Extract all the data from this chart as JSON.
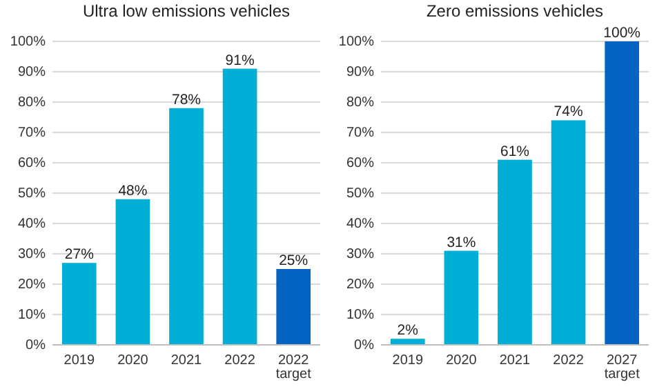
{
  "chart_data": [
    {
      "type": "bar",
      "title": "Ultra low emissions vehicles",
      "categories": [
        "2019",
        "2020",
        "2021",
        "2022",
        "2022\ntarget"
      ],
      "values": [
        27,
        48,
        78,
        91,
        25
      ],
      "colors": [
        "#00aed6",
        "#00aed6",
        "#00aed6",
        "#00aed6",
        "#0563c1"
      ],
      "value_labels": [
        "27%",
        "48%",
        "78%",
        "91%",
        "25%"
      ],
      "ylim": [
        0,
        100
      ],
      "yticks": [
        {
          "value": 0,
          "label": "0%"
        },
        {
          "value": 10,
          "label": "10%"
        },
        {
          "value": 20,
          "label": "20%"
        },
        {
          "value": 30,
          "label": "30%"
        },
        {
          "value": 40,
          "label": "40%"
        },
        {
          "value": 50,
          "label": "50%"
        },
        {
          "value": 60,
          "label": "60%"
        },
        {
          "value": 70,
          "label": "70%"
        },
        {
          "value": 80,
          "label": "80%"
        },
        {
          "value": 90,
          "label": "90%"
        },
        {
          "value": 100,
          "label": "100%"
        }
      ],
      "grid": "y"
    },
    {
      "type": "bar",
      "title": "Zero emissions vehicles",
      "categories": [
        "2019",
        "2020",
        "2021",
        "2022",
        "2027\ntarget"
      ],
      "values": [
        2,
        31,
        61,
        74,
        100
      ],
      "colors": [
        "#00aed6",
        "#00aed6",
        "#00aed6",
        "#00aed6",
        "#0563c1"
      ],
      "value_labels": [
        "2%",
        "31%",
        "61%",
        "74%",
        "100%"
      ],
      "ylim": [
        0,
        100
      ],
      "yticks": [
        {
          "value": 0,
          "label": "0%"
        },
        {
          "value": 10,
          "label": "10%"
        },
        {
          "value": 20,
          "label": "20%"
        },
        {
          "value": 30,
          "label": "30%"
        },
        {
          "value": 40,
          "label": "40%"
        },
        {
          "value": 50,
          "label": "50%"
        },
        {
          "value": 60,
          "label": "60%"
        },
        {
          "value": 70,
          "label": "70%"
        },
        {
          "value": 80,
          "label": "80%"
        },
        {
          "value": 90,
          "label": "90%"
        },
        {
          "value": 100,
          "label": "100%"
        }
      ],
      "grid": "y"
    }
  ]
}
